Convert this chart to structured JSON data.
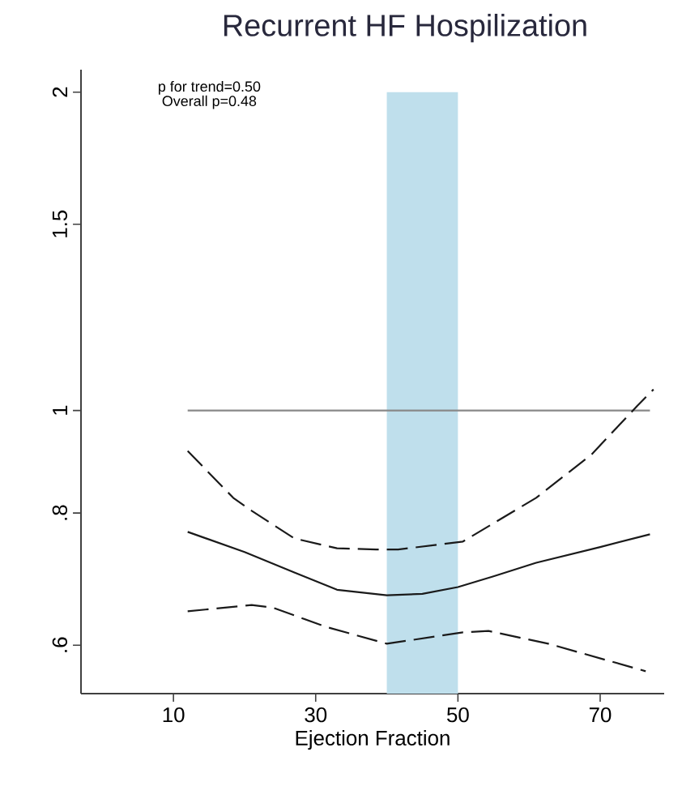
{
  "chart_data": {
    "type": "line",
    "title": "Recurrent HF Hospilization",
    "xlabel": "Ejection Fraction",
    "annotations": [
      "p for trend=0.50",
      "Overall p=0.48"
    ],
    "xlim": [
      -3,
      79
    ],
    "xticks": [
      10,
      30,
      50,
      70
    ],
    "ylim": [
      0.54,
      2.1
    ],
    "log": "y",
    "yticks": [
      {
        "value": 0.6,
        "label": ".6"
      },
      {
        "value": 0.8,
        "label": ".8"
      },
      {
        "value": 1,
        "label": "1"
      },
      {
        "value": 1.5,
        "label": "1.5"
      },
      {
        "value": 2,
        "label": "2"
      }
    ],
    "marker": "none",
    "bands": [
      {
        "axis": "x",
        "from": 40,
        "to": 50,
        "color": "#bfdfec"
      }
    ],
    "series": [
      {
        "color": "#888888",
        "line_style": "solid",
        "x": [
          12,
          77
        ],
        "values": [
          1,
          1
        ]
      },
      {
        "color": "#1a1a1a",
        "line_style": "solid",
        "x": [
          12,
          20,
          27,
          33,
          40,
          45,
          50,
          55,
          61,
          70,
          77
        ],
        "values": [
          0.768,
          0.735,
          0.703,
          0.677,
          0.669,
          0.671,
          0.681,
          0.697,
          0.718,
          0.743,
          0.764
        ]
      },
      {
        "color": "#1a1a1a",
        "line_style": "dashed",
        "x": [
          12,
          18.4,
          21,
          27,
          33,
          38.5,
          41.6,
          50.7,
          61,
          68.8,
          75.2,
          77.5
        ],
        "values": [
          0.916,
          0.827,
          0.804,
          0.757,
          0.741,
          0.739,
          0.739,
          0.752,
          0.827,
          0.909,
          1.01,
          1.047
        ]
      },
      {
        "color": "#1a1a1a",
        "line_style": "dashed",
        "x": [
          12,
          21,
          24,
          31.6,
          40,
          50.7,
          54.3,
          62.7,
          76.4
        ],
        "values": [
          0.646,
          0.655,
          0.651,
          0.624,
          0.602,
          0.617,
          0.619,
          0.602,
          0.567
        ]
      }
    ]
  }
}
